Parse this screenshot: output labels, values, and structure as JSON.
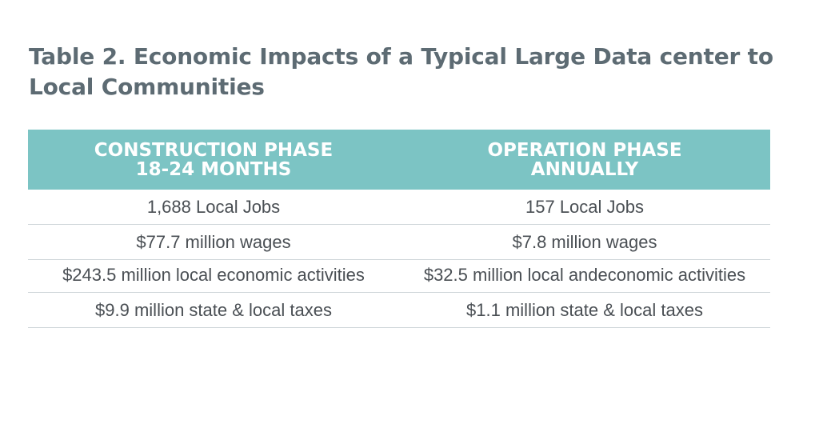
{
  "title": "Table 2. Economic Impacts of a Typical Large Data center to Local Communities",
  "table": {
    "headers": [
      {
        "line1": "CONSTRUCTION PHASE",
        "line2": "18-24 MONTHS"
      },
      {
        "line1": "OPERATION PHASE",
        "line2": "ANNUALLY"
      }
    ],
    "rows": [
      [
        "1,688 Local Jobs",
        "157 Local Jobs"
      ],
      [
        "$77.7 million wages",
        "$7.8 million wages"
      ],
      [
        "$243.5 million local economic activities",
        "$32.5 million local andeconomic activities"
      ],
      [
        "$9.9 million state & local taxes",
        "$1.1 million state & local taxes"
      ]
    ]
  },
  "colors": {
    "header_bg": "#7cc4c4",
    "title_text": "#5d6b73",
    "body_text": "#4a4f54",
    "row_divider": "#cfd6d9"
  }
}
